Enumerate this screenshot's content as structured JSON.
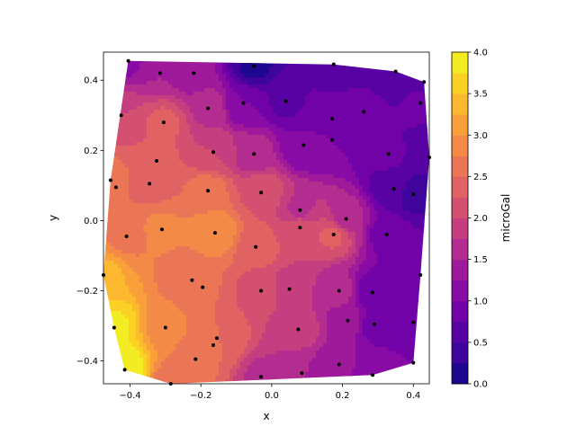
{
  "chart_data": {
    "type": "heatmap",
    "subtype": "filled-contour",
    "title": "",
    "xlabel": "x",
    "ylabel": "y",
    "xlim": [
      -0.475,
      0.445
    ],
    "ylim": [
      -0.465,
      0.48
    ],
    "x_ticks": [
      -0.4,
      -0.2,
      0.0,
      0.2,
      0.4
    ],
    "x_tick_labels": [
      "−0.4",
      "−0.2",
      "0.0",
      "0.2",
      "0.4"
    ],
    "y_ticks": [
      -0.4,
      -0.2,
      0.0,
      0.2,
      0.4
    ],
    "y_tick_labels": [
      "−0.4",
      "−0.2",
      "0.0",
      "0.2",
      "0.4"
    ],
    "colormap": "plasma",
    "colorbar": {
      "label": "microGal",
      "range": [
        0,
        4
      ],
      "ticks": [
        0.0,
        0.5,
        1.0,
        1.5,
        2.0,
        2.5,
        3.0,
        3.5,
        4.0
      ],
      "tick_labels": [
        "0.0",
        "0.5",
        "1.0",
        "1.5",
        "2.0",
        "2.5",
        "3.0",
        "3.5",
        "4.0"
      ]
    },
    "grid": false,
    "stations": [
      {
        "x": -0.405,
        "y": 0.455
      },
      {
        "x": -0.315,
        "y": 0.42
      },
      {
        "x": -0.22,
        "y": 0.42
      },
      {
        "x": -0.05,
        "y": 0.44
      },
      {
        "x": 0.175,
        "y": 0.445
      },
      {
        "x": 0.35,
        "y": 0.425
      },
      {
        "x": 0.43,
        "y": 0.395
      },
      {
        "x": 0.42,
        "y": 0.335
      },
      {
        "x": -0.425,
        "y": 0.3
      },
      {
        "x": -0.305,
        "y": 0.28
      },
      {
        "x": -0.18,
        "y": 0.32
      },
      {
        "x": -0.08,
        "y": 0.335
      },
      {
        "x": 0.04,
        "y": 0.34
      },
      {
        "x": 0.17,
        "y": 0.29
      },
      {
        "x": 0.26,
        "y": 0.31
      },
      {
        "x": 0.17,
        "y": 0.23
      },
      {
        "x": 0.09,
        "y": 0.215
      },
      {
        "x": -0.325,
        "y": 0.17
      },
      {
        "x": -0.165,
        "y": 0.195
      },
      {
        "x": -0.05,
        "y": 0.19
      },
      {
        "x": 0.33,
        "y": 0.19
      },
      {
        "x": 0.445,
        "y": 0.18
      },
      {
        "x": -0.455,
        "y": 0.115
      },
      {
        "x": -0.44,
        "y": 0.095
      },
      {
        "x": -0.345,
        "y": 0.105
      },
      {
        "x": -0.18,
        "y": 0.085
      },
      {
        "x": -0.03,
        "y": 0.08
      },
      {
        "x": 0.345,
        "y": 0.09
      },
      {
        "x": 0.4,
        "y": 0.075
      },
      {
        "x": 0.08,
        "y": 0.03
      },
      {
        "x": 0.21,
        "y": 0.005
      },
      {
        "x": -0.41,
        "y": -0.045
      },
      {
        "x": -0.31,
        "y": -0.025
      },
      {
        "x": -0.16,
        "y": -0.035
      },
      {
        "x": 0.08,
        "y": -0.02
      },
      {
        "x": 0.175,
        "y": -0.04
      },
      {
        "x": 0.325,
        "y": -0.04
      },
      {
        "x": -0.045,
        "y": -0.075
      },
      {
        "x": -0.475,
        "y": -0.155
      },
      {
        "x": -0.225,
        "y": -0.17
      },
      {
        "x": -0.195,
        "y": -0.19
      },
      {
        "x": -0.03,
        "y": -0.2
      },
      {
        "x": 0.05,
        "y": -0.195
      },
      {
        "x": 0.19,
        "y": -0.2
      },
      {
        "x": 0.285,
        "y": -0.205
      },
      {
        "x": 0.42,
        "y": -0.155
      },
      {
        "x": -0.445,
        "y": -0.305
      },
      {
        "x": -0.3,
        "y": -0.305
      },
      {
        "x": -0.155,
        "y": -0.335
      },
      {
        "x": 0.075,
        "y": -0.31
      },
      {
        "x": 0.215,
        "y": -0.285
      },
      {
        "x": 0.29,
        "y": -0.295
      },
      {
        "x": 0.4,
        "y": -0.29
      },
      {
        "x": -0.165,
        "y": -0.355
      },
      {
        "x": -0.415,
        "y": -0.425
      },
      {
        "x": -0.215,
        "y": -0.395
      },
      {
        "x": -0.285,
        "y": -0.465
      },
      {
        "x": -0.03,
        "y": -0.445
      },
      {
        "x": 0.085,
        "y": -0.435
      },
      {
        "x": 0.19,
        "y": -0.41
      },
      {
        "x": 0.285,
        "y": -0.44
      },
      {
        "x": 0.4,
        "y": -0.405
      }
    ],
    "station_values": [
      1.2,
      1.5,
      1.3,
      0.2,
      0.5,
      0.5,
      0.7,
      0.8,
      2.0,
      2.3,
      1.7,
      1.0,
      0.7,
      1.0,
      0.8,
      1.0,
      1.0,
      2.3,
      2.0,
      1.6,
      0.8,
      0.5,
      2.6,
      2.5,
      2.4,
      2.6,
      2.2,
      0.6,
      0.4,
      1.7,
      1.6,
      2.7,
      2.8,
      3.0,
      2.2,
      2.3,
      0.9,
      2.4,
      3.3,
      2.6,
      2.5,
      2.1,
      1.9,
      1.6,
      0.8,
      0.8,
      3.8,
      2.9,
      2.5,
      1.9,
      1.4,
      0.9,
      0.8,
      2.5,
      4.0,
      2.6,
      2.6,
      1.7,
      1.5,
      1.3,
      1.1,
      1.0
    ]
  }
}
